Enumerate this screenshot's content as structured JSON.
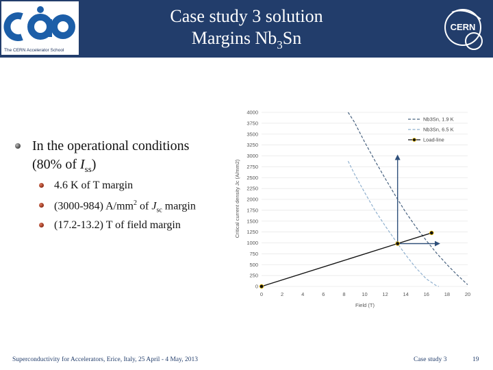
{
  "header": {
    "title_line1": "Case study 3 solution",
    "title_line2_main": "Margins Nb",
    "title_line2_sub": "3",
    "title_line2_end": "Sn",
    "left_logo_caption": "The CERN Accelerator School",
    "right_logo_text": "CERN"
  },
  "content": {
    "bullet_main_line1": "In the operational conditions",
    "bullet_main_line2_pre": "(80% of ",
    "bullet_main_line2_i": "I",
    "bullet_main_line2_sub": "ss",
    "bullet_main_line2_post": ")",
    "sub1": "4.6 K of T margin",
    "sub2_pre": "(3000-984) A/mm",
    "sub2_sup": "2",
    "sub2_mid": " of ",
    "sub2_j": "J",
    "sub2_sub": "sc",
    "sub2_post": " margin",
    "sub3": "(17.2-13.2) T of field margin"
  },
  "chart_data": {
    "type": "line",
    "xlabel": "Field (T)",
    "ylabel": "Critical current density Jc (A/mm2)",
    "xlim": [
      0,
      20
    ],
    "ylim": [
      0,
      4000
    ],
    "x_ticks": [
      "0",
      "2",
      "4",
      "6",
      "8",
      "10",
      "12",
      "14",
      "16",
      "18",
      "20"
    ],
    "y_ticks": [
      "0",
      "250",
      "500",
      "750",
      "1000",
      "1250",
      "1500",
      "1750",
      "2000",
      "2250",
      "2500",
      "2750",
      "3000",
      "3250",
      "3500",
      "3750",
      "4000"
    ],
    "legend_position": "top-right",
    "series": [
      {
        "name": "Nb3Sn, 1.9 K",
        "color": "#46607e",
        "style": "dashed",
        "x": [
          8.4,
          9,
          10,
          11,
          12,
          13,
          14,
          15,
          16,
          17,
          18,
          19,
          20
        ],
        "y": [
          4000,
          3780,
          3320,
          2890,
          2480,
          2080,
          1700,
          1360,
          1050,
          760,
          500,
          260,
          40
        ]
      },
      {
        "name": "Nb3Sn, 6.5 K",
        "color": "#8fb0cf",
        "style": "dashed",
        "x": [
          8.4,
          9,
          10,
          11,
          12,
          13,
          14,
          15,
          16,
          17,
          17.2
        ],
        "y": [
          2880,
          2590,
          2160,
          1750,
          1390,
          1050,
          720,
          420,
          170,
          10,
          0
        ]
      },
      {
        "name": "Load-line",
        "color": "#111111",
        "style": "solid",
        "marker": "circle",
        "x": [
          0,
          13.2,
          16.5
        ],
        "y": [
          0,
          984,
          1230
        ]
      }
    ],
    "annotations": [
      {
        "type": "arrow",
        "from": [
          13.2,
          984
        ],
        "to": [
          13.2,
          3000
        ],
        "color": "#2e4f7a"
      },
      {
        "type": "arrow",
        "from": [
          13.2,
          984
        ],
        "to": [
          17.2,
          984
        ],
        "color": "#2e4f7a"
      }
    ]
  },
  "footer": {
    "left": "Superconductivity for Accelerators, Erice, Italy, 25 April - 4 May, 2013",
    "center": "Case study 3",
    "page": "19"
  }
}
